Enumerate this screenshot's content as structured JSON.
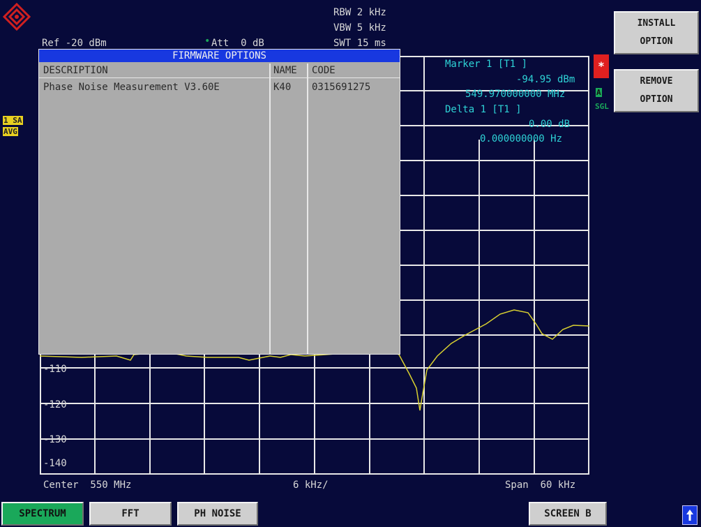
{
  "header": {
    "ref": "Ref -20 dBm",
    "att_marker": "•",
    "att": "Att  0 dB",
    "rbw": "RBW 2 kHz",
    "vbw": "VBW 5 kHz",
    "swt": "SWT 15 ms"
  },
  "marker": {
    "marker_label": "Marker 1 [T1 ]",
    "marker_level": "-94.95 dBm",
    "marker_freq": "549.970000000 MHz",
    "delta_label": "Delta 1 [T1 ]",
    "delta_level": "0.00 dB",
    "delta_freq": "0.000000000 Hz"
  },
  "trace_badges": {
    "trace": "1 SA",
    "avg": "AVG"
  },
  "status_badges": {
    "star": "*",
    "a": "A",
    "sgl": "SGL"
  },
  "y_axis_labels": [
    "-110",
    "-120",
    "-130",
    "-140"
  ],
  "footer": {
    "center": "Center  550 MHz",
    "span_div": "6 kHz/",
    "span": "Span  60 kHz"
  },
  "dialog": {
    "title": "FIRMWARE OPTIONS",
    "columns": [
      "DESCRIPTION",
      "NAME",
      "CODE"
    ],
    "rows": [
      {
        "description": "Phase Noise Measurement V3.60E",
        "name": "K40",
        "code": "0315691275"
      }
    ]
  },
  "softkeys": [
    {
      "line1": "INSTALL",
      "line2": "OPTION"
    },
    {
      "line1": "REMOVE",
      "line2": "OPTION"
    }
  ],
  "hotkeys": [
    "SPECTRUM",
    "FFT",
    "PH NOISE",
    "SCREEN B"
  ],
  "colors": {
    "background": "#070a3a",
    "grid": "#e8e8e8",
    "trace": "#d8d030",
    "marker_text": "#2ed3d6",
    "dialog_title": "#1838e0",
    "dialog_body": "#ababab",
    "hotkey_active": "#1aa85a"
  },
  "icons": [
    "rohde-schwarz-logo-icon",
    "up-arrow-icon"
  ]
}
